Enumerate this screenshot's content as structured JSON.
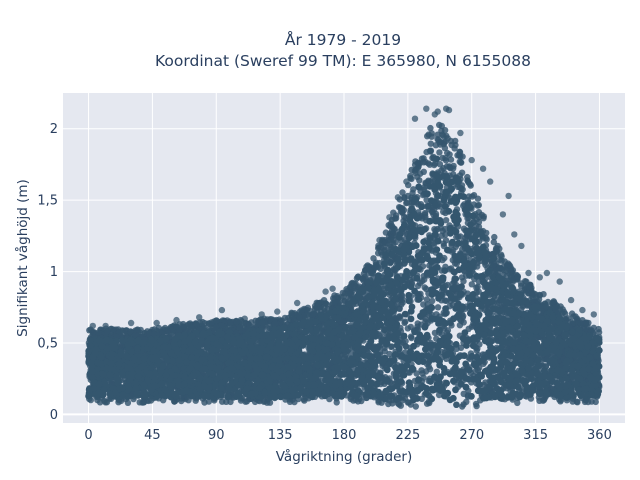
{
  "chart_data": {
    "type": "scatter",
    "title": "År 1979 - 2019",
    "subtitle": "Koordinat (Sweref 99 TM): E 365980, N 6155088",
    "xlabel": "Vågriktning (grader)",
    "ylabel": "Signifikant våghöjd (m)",
    "xlim": [
      -18,
      378
    ],
    "ylim": [
      -0.06,
      2.25
    ],
    "x_ticks": [
      0,
      45,
      90,
      135,
      180,
      225,
      270,
      315,
      360
    ],
    "x_tick_labels": [
      "0",
      "45",
      "90",
      "135",
      "180",
      "225",
      "270",
      "315",
      "360"
    ],
    "y_ticks": [
      0,
      0.5,
      1,
      1.5,
      2
    ],
    "y_tick_labels": [
      "0",
      "0,5",
      "1",
      "1,5",
      "2"
    ],
    "grid": true,
    "marker_color": "#34566e",
    "plot_bg": "#e5e8f0",
    "series": [
      {
        "values_note": "",
        "envelope": {
          "x": [
            0,
            20,
            45,
            70,
            90,
            110,
            135,
            150,
            165,
            180,
            195,
            205,
            215,
            225,
            233,
            240,
            248,
            255,
            262,
            270,
            280,
            290,
            300,
            315,
            330,
            345,
            360
          ],
          "y_max": [
            0.6,
            0.6,
            0.6,
            0.64,
            0.66,
            0.66,
            0.68,
            0.74,
            0.8,
            0.86,
            1.02,
            1.2,
            1.42,
            1.65,
            1.85,
            2.0,
            2.05,
            2.0,
            1.85,
            1.62,
            1.38,
            1.15,
            1.0,
            0.88,
            0.78,
            0.68,
            0.6
          ],
          "y_min": [
            0.08,
            0.08,
            0.08,
            0.08,
            0.08,
            0.08,
            0.08,
            0.08,
            0.08,
            0.08,
            0.08,
            0.06,
            0.06,
            0.05,
            0.05,
            0.05,
            0.05,
            0.05,
            0.05,
            0.05,
            0.06,
            0.07,
            0.08,
            0.08,
            0.08,
            0.08,
            0.08
          ]
        },
        "outliers": [
          [
            238,
            2.14
          ],
          [
            252,
            2.14
          ],
          [
            254,
            2.13
          ],
          [
            246,
            2.12
          ],
          [
            230,
            2.07
          ],
          [
            244,
            2.1
          ],
          [
            262,
            1.97
          ],
          [
            270,
            1.78
          ],
          [
            278,
            1.72
          ],
          [
            283,
            1.63
          ],
          [
            296,
            1.53
          ],
          [
            292,
            1.4
          ],
          [
            300,
            1.26
          ],
          [
            305,
            1.18
          ],
          [
            310,
            0.99
          ],
          [
            318,
            0.96
          ],
          [
            323,
            0.99
          ],
          [
            332,
            0.93
          ],
          [
            340,
            0.8
          ],
          [
            348,
            0.73
          ],
          [
            356,
            0.7
          ],
          [
            167,
            0.86
          ],
          [
            172,
            0.88
          ],
          [
            178,
            0.82
          ],
          [
            147,
            0.78
          ],
          [
            133,
            0.72
          ],
          [
            122,
            0.7
          ],
          [
            110,
            0.67
          ],
          [
            94,
            0.73
          ],
          [
            78,
            0.68
          ],
          [
            62,
            0.66
          ],
          [
            48,
            0.64
          ],
          [
            30,
            0.64
          ],
          [
            12,
            0.62
          ],
          [
            3,
            0.62
          ],
          [
            205,
            1.22
          ],
          [
            212,
            1.38
          ],
          [
            218,
            1.52
          ],
          [
            224,
            1.63
          ]
        ]
      }
    ]
  }
}
